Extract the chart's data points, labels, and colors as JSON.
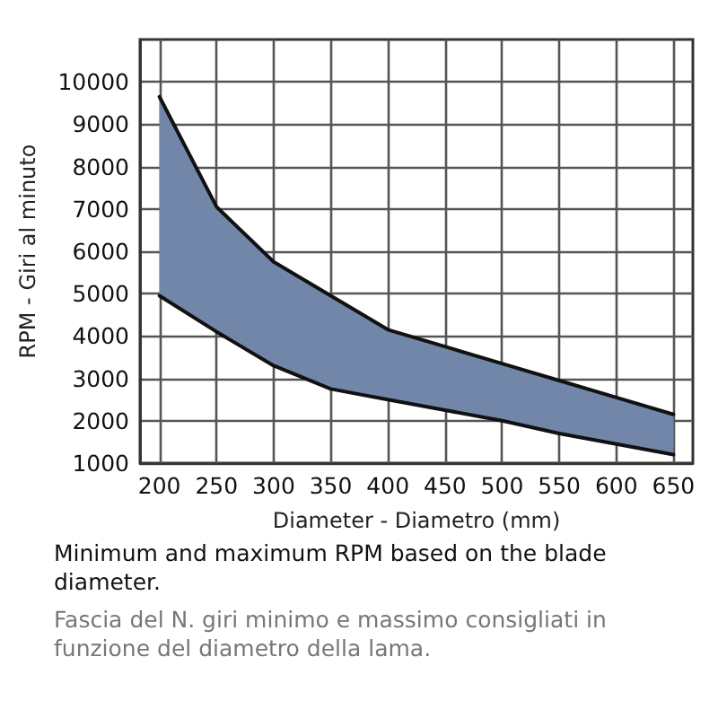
{
  "chart_data": {
    "type": "area",
    "xlabel": "Diameter - Diametro (mm)",
    "ylabel": "RPM - Giri al minuto",
    "x": [
      200,
      250,
      300,
      350,
      400,
      450,
      500,
      550,
      600,
      650
    ],
    "series": [
      {
        "color": "#7186a9",
        "values": [
          9650,
          7050,
          5750,
          4950,
          4150,
          3750,
          3350,
          2950,
          2550,
          2150
        ]
      },
      {
        "type": "line",
        "color": "#111111",
        "values": [
          4950,
          4100,
          3300,
          2750,
          2500,
          2250,
          2000,
          1700,
          1450,
          1200
        ]
      }
    ],
    "xlim": [
      183,
      667
    ],
    "ylim": [
      1000,
      11000
    ],
    "xticks": [
      200,
      250,
      300,
      350,
      400,
      450,
      500,
      550,
      600,
      650
    ],
    "yticks": [
      1000,
      2000,
      3000,
      4000,
      5000,
      6000,
      7000,
      8000,
      9000,
      10000
    ],
    "grid": true,
    "marker": "none",
    "line_style": "solid",
    "annotations": [
      "Minimum and maximum RPM based on the blade diameter.",
      "Fascia del N. giri minimo e massimo consigliati in funzione del diametro della lama."
    ]
  }
}
